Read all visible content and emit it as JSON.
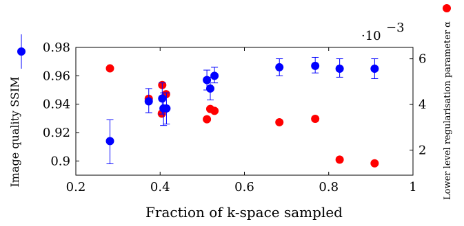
{
  "chart_data": {
    "type": "scatter",
    "xlabel": "Fraction of k-space sampled",
    "ylabel_left": "Image quality SSIM",
    "ylabel_right": "Lower level regularisation parameter α",
    "right_axis_multiplier": "·10",
    "right_axis_exponent": "−3",
    "xlim": [
      0.2,
      1.0
    ],
    "ylim_left": [
      0.89,
      0.98
    ],
    "ylim_right": [
      0.0009,
      0.0065
    ],
    "x_ticks": [
      {
        "value": 0.2,
        "label": "0.2"
      },
      {
        "value": 0.4,
        "label": "0.4"
      },
      {
        "value": 0.6,
        "label": "0.6"
      },
      {
        "value": 0.8,
        "label": "0.8"
      },
      {
        "value": 1.0,
        "label": "1"
      }
    ],
    "y_left_ticks": [
      {
        "value": 0.9,
        "label": "0.9"
      },
      {
        "value": 0.92,
        "label": "0.92"
      },
      {
        "value": 0.94,
        "label": "0.94"
      },
      {
        "value": 0.96,
        "label": "0.96"
      },
      {
        "value": 0.98,
        "label": "0.98"
      }
    ],
    "y_right_ticks": [
      {
        "value": 0.002,
        "label": "2"
      },
      {
        "value": 0.004,
        "label": "4"
      },
      {
        "value": 0.006,
        "label": "6"
      }
    ],
    "series": [
      {
        "axis": "left",
        "color": "#0000ff",
        "error_bars": true,
        "points": [
          {
            "x": 0.281,
            "y": 0.914,
            "err_low": 0.898,
            "err_high": 0.929
          },
          {
            "x": 0.373,
            "y": 0.942,
            "err_low": 0.934,
            "err_high": 0.951
          },
          {
            "x": 0.405,
            "y": 0.944,
            "err_low": 0.933,
            "err_high": 0.955
          },
          {
            "x": 0.408,
            "y": 0.937,
            "err_low": 0.925,
            "err_high": 0.948
          },
          {
            "x": 0.415,
            "y": 0.937,
            "err_low": 0.926,
            "err_high": 0.948
          },
          {
            "x": 0.511,
            "y": 0.957,
            "err_low": 0.95,
            "err_high": 0.964
          },
          {
            "x": 0.519,
            "y": 0.951,
            "err_low": 0.943,
            "err_high": 0.959
          },
          {
            "x": 0.529,
            "y": 0.96,
            "err_low": 0.955,
            "err_high": 0.966
          },
          {
            "x": 0.683,
            "y": 0.966,
            "err_low": 0.96,
            "err_high": 0.972
          },
          {
            "x": 0.768,
            "y": 0.967,
            "err_low": 0.962,
            "err_high": 0.973
          },
          {
            "x": 0.826,
            "y": 0.965,
            "err_low": 0.959,
            "err_high": 0.972
          },
          {
            "x": 0.909,
            "y": 0.965,
            "err_low": 0.958,
            "err_high": 0.972
          }
        ]
      },
      {
        "axis": "right",
        "color": "#ff0000",
        "error_bars": false,
        "points": [
          {
            "x": 0.281,
            "y": 0.00558
          },
          {
            "x": 0.373,
            "y": 0.00425
          },
          {
            "x": 0.405,
            "y": 0.00485
          },
          {
            "x": 0.404,
            "y": 0.0036
          },
          {
            "x": 0.414,
            "y": 0.00445
          },
          {
            "x": 0.511,
            "y": 0.00335
          },
          {
            "x": 0.519,
            "y": 0.0038
          },
          {
            "x": 0.529,
            "y": 0.00372
          },
          {
            "x": 0.683,
            "y": 0.00322
          },
          {
            "x": 0.768,
            "y": 0.00337
          },
          {
            "x": 0.826,
            "y": 0.00158
          },
          {
            "x": 0.909,
            "y": 0.00142
          }
        ]
      }
    ]
  }
}
